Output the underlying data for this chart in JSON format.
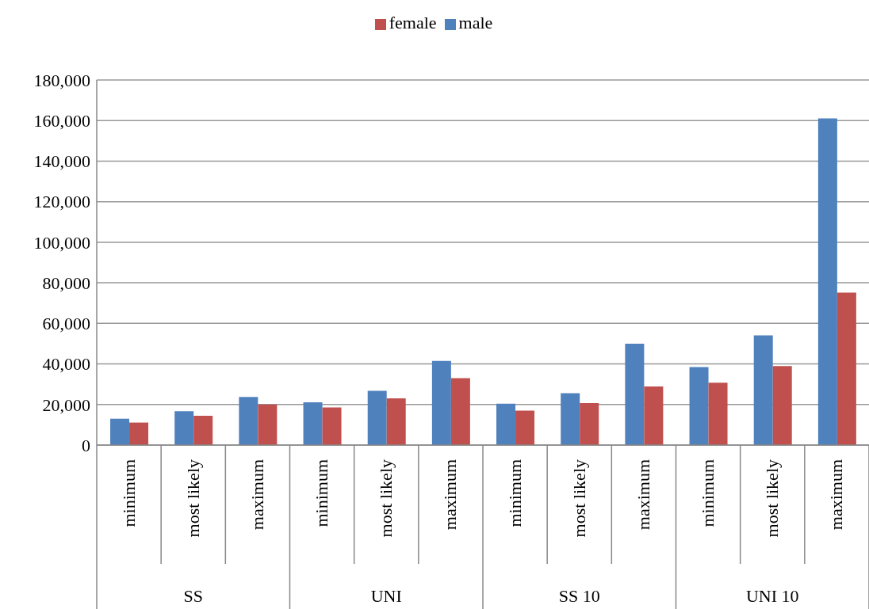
{
  "chart_data": {
    "type": "bar",
    "categories": [
      "minimum",
      "most likely",
      "maximum",
      "minimum",
      "most likely",
      "maximum",
      "minimum",
      "most likely",
      "maximum",
      "minimum",
      "most likely",
      "maximum"
    ],
    "annotations": [
      "SS",
      "UNI",
      "SS 10",
      "UNI 10"
    ],
    "series": [
      {
        "name": "male",
        "color": "#4f81bd",
        "values": [
          13000,
          16700,
          23700,
          21100,
          26700,
          41500,
          20400,
          25600,
          50000,
          38500,
          54100,
          161100
        ]
      },
      {
        "name": "female",
        "color": "#c0504d",
        "values": [
          11100,
          14400,
          20000,
          18500,
          23000,
          33000,
          17000,
          20700,
          28900,
          30700,
          38900,
          75200
        ]
      }
    ],
    "ylim": [
      0,
      180000
    ],
    "yticks": [
      {
        "value": 0,
        "label": "0"
      },
      {
        "value": 20000,
        "label": "20,000"
      },
      {
        "value": 40000,
        "label": "40,000"
      },
      {
        "value": 60000,
        "label": "60,000"
      },
      {
        "value": 80000,
        "label": "80,000"
      },
      {
        "value": 100000,
        "label": "100,000"
      },
      {
        "value": 120000,
        "label": "120,000"
      },
      {
        "value": 140000,
        "label": "140,000"
      },
      {
        "value": 160000,
        "label": "160,000"
      },
      {
        "value": 180000,
        "label": "180,000"
      }
    ],
    "grid": "y",
    "legend": "top"
  }
}
